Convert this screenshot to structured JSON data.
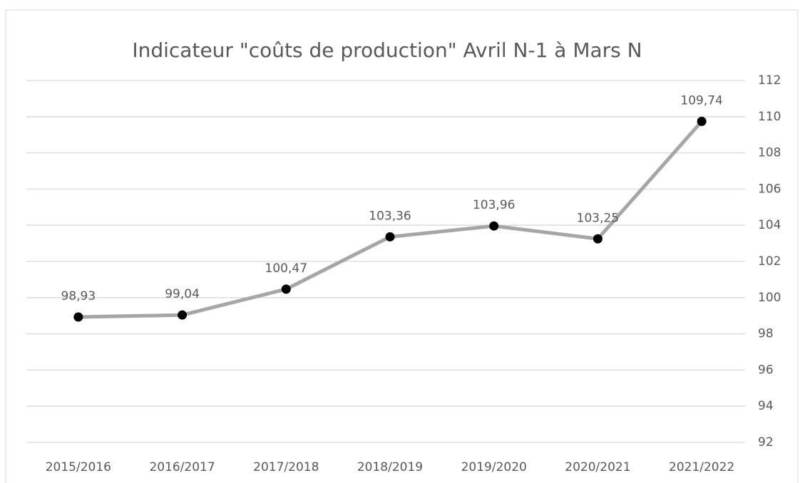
{
  "chart_data": {
    "type": "line",
    "title": "Indicateur \"coûts de production\" Avril N-1 à Mars N",
    "categories": [
      "2015/2016",
      "2016/2017",
      "2017/2018",
      "2018/2019",
      "2019/2020",
      "2020/2021",
      "2021/2022"
    ],
    "values": [
      98.93,
      99.04,
      100.47,
      103.36,
      103.96,
      103.25,
      109.74
    ],
    "value_labels": [
      "98,93",
      "99,04",
      "100,47",
      "103,36",
      "103,96",
      "103,25",
      "109,74"
    ],
    "color": "#a6a6a6",
    "marker_color": "#000000",
    "ylim": [
      92,
      112
    ],
    "yticks": [
      92,
      94,
      96,
      98,
      100,
      102,
      104,
      106,
      108,
      110,
      112
    ],
    "grid": true,
    "y_axis_position": "right"
  }
}
